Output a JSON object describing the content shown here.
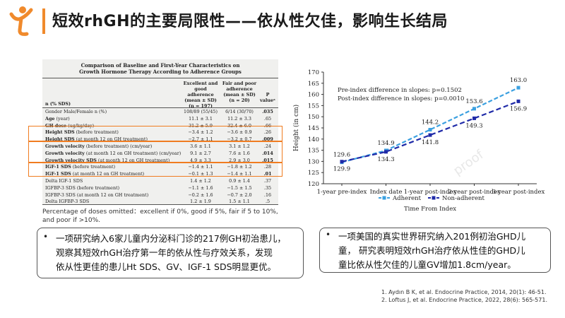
{
  "title": "短效rhGH的主要局限性——依从性欠佳，影响生长结局",
  "table": {
    "title_line1": "Comparison of Baseline and First-Year Characteristics on",
    "title_line2": "Growth Hormone Therapy According to Adherence Groups",
    "headers": {
      "param": "n (% SDS)",
      "group1": [
        "Excellent and",
        "good adherence",
        "(mean ± SD)",
        "(n = 197)"
      ],
      "group2": [
        "Fair and poor",
        "adherence",
        "(mean ± SD)",
        "(n = 20)"
      ],
      "p": [
        "P",
        "valueᵃ"
      ]
    },
    "rows": [
      {
        "label": "Gender",
        "detail": " Male/Female n (%)",
        "g1": "108/89 (55/45)",
        "g2": "6/14 (30/70)",
        "p": ".035"
      },
      {
        "label": "Age",
        "detail": " (year)",
        "g1": "11.1 ± 3.1",
        "g2": "11.2 ± 3.3",
        "p": ".65"
      },
      {
        "label": "GH dose",
        "detail": " (ug/kg/day)",
        "g1": "31.2 ± 5.9",
        "g2": "32.4 ± 6.0",
        "p": ".66"
      },
      {
        "label": "Height SDS",
        "detail": " (before treatment)",
        "g1": "−3.4 ± 1.2",
        "g2": "−3.6 ± 0.9",
        "p": ".26"
      },
      {
        "label": "Height SDS",
        "detail": " (at month 12 on GH treatment)",
        "g1": "−2.7 ± 1.1",
        "g2": "−3.2 ± 0.7",
        "p": ".009"
      },
      {
        "label": "Growth velocity",
        "detail": " (before treatment) (cm/year)",
        "g1": "3.6 ± 1.1",
        "g2": "3.1 ± 1.2",
        "p": ".24"
      },
      {
        "label": "Growth velocity",
        "detail": " (at month 12 on GH treatment) (cm/year)",
        "g1": "9.1 ± 2.7",
        "g2": "7.6 ± 1.6",
        "p": ".014"
      },
      {
        "label": "Growth velocity SDS",
        "detail": " (at month 12 on GH treatment)",
        "g1": "4.9 ± 3.3",
        "g2": "2.9 ± 3.0",
        "p": ".015"
      },
      {
        "label": "IGF-1 SDS",
        "detail": " (before treatment)",
        "g1": "−1.4 ± 1.1",
        "g2": "−1.8 ± 1.2",
        "p": ".28"
      },
      {
        "label": "IGF-1 SDS",
        "detail": " (at month 12 on GH treatment)",
        "g1": "−0.1 ± 1.3",
        "g2": "−1.4 ± 1.1",
        "p": ".01"
      },
      {
        "label": "Delta IGF-1 SDS",
        "detail": "",
        "g1": "1.4 ± 1.2",
        "g2": "0.9 ± 1.4",
        "p": ".37"
      },
      {
        "label": "IGFBP-3 SDS",
        "detail": " (before treatment)",
        "g1": "−1.1 ± 1.6",
        "g2": "−1.5 ± 1.5",
        "p": ".35"
      },
      {
        "label": "IGFBP-3 SDS",
        "detail": " (at month 12 on GH treatment)",
        "g1": "−0.2 ± 1.6",
        "g2": "−0.7 ± 2.0",
        "p": ".16"
      },
      {
        "label": "Delta IGFBP-3 SDS",
        "detail": "",
        "g1": "1.2 ± 1.9",
        "g2": "1.5 ± 1.1",
        "p": ".5"
      }
    ]
  },
  "note": "Percentage of doses omitted：excellent if 0%, good if 5%, fair if 5 to 10%, and poor if >10%.",
  "box1": {
    "bullet": "•",
    "line1": "一项研究纳入6家儿童内分泌科门诊的217例GH初治患儿，",
    "line2": "观察其短效rhGH治疗第一年的依从性与疗效关系，发现",
    "line3": "依从性更佳的患儿Ht SDS、GV、IGF-1 SDS明显更优。"
  },
  "box2": {
    "bullet": "•",
    "line1": "一项美国的真实世界研究纳入201例初治GHD儿",
    "line2": "童， 研究表明短效rhGH治疗依从性佳的GHD儿",
    "line3": "童比依从性欠佳的儿童GV增加1.8cm/year。"
  },
  "references": [
    "1.  Aydın B K, et al. Endocrine Practice, 2014, 20(1): 46-51.",
    "2.  Loftus J, et al. Endocrine Practice, 2022, 28(6): 565-571."
  ],
  "watermark": "proof",
  "colors": {
    "accent": "#f08a2c",
    "adherent": "#3ba0e0",
    "non_adherent": "#1f2aa8"
  },
  "chart_data": {
    "type": "line",
    "categories": [
      "1-year pre-index",
      "Index date",
      "1-year post-index",
      "2-year post-index",
      "3-year post-index"
    ],
    "series": [
      {
        "name": "Adherent",
        "values": [
          129.6,
          134.9,
          144.2,
          153.6,
          163.0
        ],
        "labels": [
          "129.6",
          "134.9",
          "144.2",
          "153.6",
          "163.0"
        ],
        "style": "dashed",
        "marker": "square"
      },
      {
        "name": "Non-adherent",
        "values": [
          129.9,
          134.3,
          141.8,
          149.3,
          156.9
        ],
        "labels": [
          "129.9",
          "134.3",
          "141.8",
          "149.3",
          "156.9"
        ],
        "style": "dashed",
        "marker": "square"
      }
    ],
    "ylabel": "Height (in cm)",
    "xlabel": "Time From Index",
    "ylim": [
      120,
      170
    ],
    "yticks": [
      "120",
      "125",
      "130",
      "135",
      "140",
      "145",
      "150",
      "155",
      "160",
      "165",
      "170"
    ],
    "annotations": [
      "Pre-index difference in slopes: p=0.1502",
      "Post-index difference in slopes: p=0.0010"
    ],
    "legend_position": "bottom",
    "grid": false
  }
}
